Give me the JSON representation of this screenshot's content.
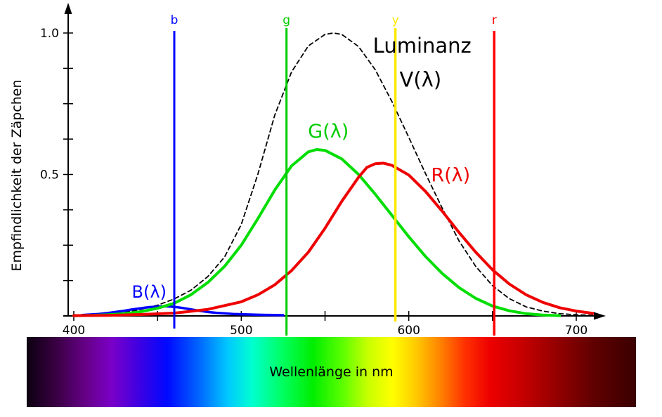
{
  "chart_data": {
    "type": "line",
    "title": "",
    "xlabel": "Wellenlänge in nm",
    "ylabel": "Empfindlichkeit der Zäpchen",
    "xlim": [
      400,
      710
    ],
    "ylim": [
      0,
      1.0
    ],
    "x_ticks": [
      [
        400,
        "400"
      ],
      [
        450,
        ""
      ],
      [
        500,
        "500"
      ],
      [
        550,
        ""
      ],
      [
        600,
        "600"
      ],
      [
        650,
        ""
      ],
      [
        700,
        "700"
      ]
    ],
    "y_ticks": [
      [
        0.125,
        ""
      ],
      [
        0.25,
        ""
      ],
      [
        0.375,
        ""
      ],
      [
        0.5,
        "0.5"
      ],
      [
        0.625,
        ""
      ],
      [
        0.75,
        ""
      ],
      [
        0.875,
        ""
      ],
      [
        1.0,
        "1.0"
      ]
    ],
    "series": [
      {
        "id": "v",
        "name": "Luminanz V(λ)",
        "color": "#000000",
        "style": "dashed",
        "width": 1.8,
        "x": [
          400,
          410,
          420,
          430,
          440,
          450,
          460,
          470,
          480,
          490,
          500,
          510,
          520,
          530,
          540,
          550,
          555,
          560,
          570,
          580,
          590,
          600,
          610,
          620,
          630,
          640,
          650,
          660,
          670,
          680,
          690,
          700,
          710
        ],
        "y": [
          0.0,
          0.001,
          0.004,
          0.012,
          0.023,
          0.038,
          0.06,
          0.091,
          0.139,
          0.208,
          0.323,
          0.503,
          0.71,
          0.862,
          0.954,
          0.995,
          1.0,
          0.995,
          0.952,
          0.87,
          0.757,
          0.631,
          0.503,
          0.381,
          0.265,
          0.175,
          0.107,
          0.061,
          0.032,
          0.017,
          0.008,
          0.004,
          0.002
        ]
      },
      {
        "id": "b",
        "name": "B(λ)",
        "color": "#0000ff",
        "style": "solid",
        "width": 3.5,
        "x": [
          405,
          410,
          415,
          420,
          425,
          430,
          435,
          440,
          445,
          450,
          455,
          460,
          465,
          470,
          475,
          480,
          485,
          490,
          495,
          500,
          505,
          510,
          515,
          520,
          525
        ],
        "y": [
          0.003,
          0.005,
          0.007,
          0.01,
          0.014,
          0.018,
          0.023,
          0.027,
          0.031,
          0.033,
          0.034,
          0.032,
          0.028,
          0.023,
          0.018,
          0.014,
          0.011,
          0.009,
          0.007,
          0.006,
          0.005,
          0.004,
          0.0035,
          0.003,
          0.0025
        ]
      },
      {
        "id": "g",
        "name": "G(λ)",
        "color": "#00dd00",
        "style": "solid",
        "width": 4,
        "x": [
          400,
          410,
          420,
          430,
          440,
          450,
          460,
          470,
          480,
          490,
          500,
          510,
          520,
          530,
          540,
          545,
          550,
          560,
          570,
          580,
          590,
          600,
          610,
          620,
          630,
          640,
          650,
          660,
          670,
          680,
          690
        ],
        "y": [
          0.001,
          0.002,
          0.004,
          0.008,
          0.015,
          0.027,
          0.045,
          0.075,
          0.118,
          0.175,
          0.25,
          0.345,
          0.445,
          0.53,
          0.58,
          0.588,
          0.585,
          0.555,
          0.5,
          0.43,
          0.355,
          0.28,
          0.21,
          0.15,
          0.1,
          0.062,
          0.035,
          0.018,
          0.008,
          0.003,
          0.001
        ]
      },
      {
        "id": "r",
        "name": "R(λ)",
        "color": "#ee0000",
        "style": "solid",
        "width": 4,
        "x": [
          400,
          420,
          440,
          460,
          480,
          500,
          510,
          520,
          530,
          540,
          550,
          560,
          570,
          575,
          580,
          585,
          590,
          600,
          610,
          620,
          630,
          640,
          650,
          660,
          670,
          680,
          690,
          700,
          710
        ],
        "y": [
          0.001,
          0.002,
          0.005,
          0.01,
          0.023,
          0.05,
          0.075,
          0.11,
          0.16,
          0.225,
          0.31,
          0.405,
          0.49,
          0.525,
          0.538,
          0.54,
          0.532,
          0.498,
          0.44,
          0.37,
          0.295,
          0.225,
          0.163,
          0.113,
          0.075,
          0.048,
          0.029,
          0.017,
          0.009
        ]
      }
    ],
    "vlines": [
      {
        "label": "b",
        "nm": 460,
        "color": "#0000ff",
        "width": 3
      },
      {
        "label": "g",
        "nm": 527,
        "color": "#00cc00",
        "width": 3
      },
      {
        "label": "y",
        "nm": 592,
        "color": "#ffe800",
        "width": 3.5
      },
      {
        "label": "r",
        "nm": 651,
        "color": "#ff0000",
        "width": 3.5
      }
    ],
    "annotations": [
      {
        "text": "Luminanz",
        "nm": 608,
        "v": 0.93,
        "color": "#000000",
        "size": 29
      },
      {
        "text": "V(λ)",
        "nm": 607,
        "v": 0.81,
        "color": "#000000",
        "size": 29
      },
      {
        "text": "G(λ)",
        "nm": 552,
        "v": 0.63,
        "color": "#00cc00",
        "size": 27
      },
      {
        "text": "R(λ)",
        "nm": 625,
        "v": 0.475,
        "color": "#ee0000",
        "size": 27
      },
      {
        "text": "B(λ)",
        "nm": 445,
        "v": 0.065,
        "color": "#0000ff",
        "size": 24
      }
    ],
    "spectrum_gradient": [
      {
        "color": "#0c0010",
        "pos": 0
      },
      {
        "color": "#3c0045",
        "pos": 5
      },
      {
        "color": "#68008c",
        "pos": 10
      },
      {
        "color": "#7a00c8",
        "pos": 14
      },
      {
        "color": "#4400e0",
        "pos": 18
      },
      {
        "color": "#0008ff",
        "pos": 23
      },
      {
        "color": "#0060ff",
        "pos": 28
      },
      {
        "color": "#00c8ff",
        "pos": 33
      },
      {
        "color": "#00ffd0",
        "pos": 37
      },
      {
        "color": "#00ff60",
        "pos": 42
      },
      {
        "color": "#00ee00",
        "pos": 47
      },
      {
        "color": "#60ff00",
        "pos": 52
      },
      {
        "color": "#c8ff00",
        "pos": 56
      },
      {
        "color": "#ffff00",
        "pos": 60
      },
      {
        "color": "#ffc800",
        "pos": 64
      },
      {
        "color": "#ff8000",
        "pos": 68
      },
      {
        "color": "#ff3000",
        "pos": 72
      },
      {
        "color": "#ee0000",
        "pos": 76
      },
      {
        "color": "#c80000",
        "pos": 81
      },
      {
        "color": "#940000",
        "pos": 87
      },
      {
        "color": "#600000",
        "pos": 93
      },
      {
        "color": "#3a0000",
        "pos": 100
      }
    ]
  }
}
